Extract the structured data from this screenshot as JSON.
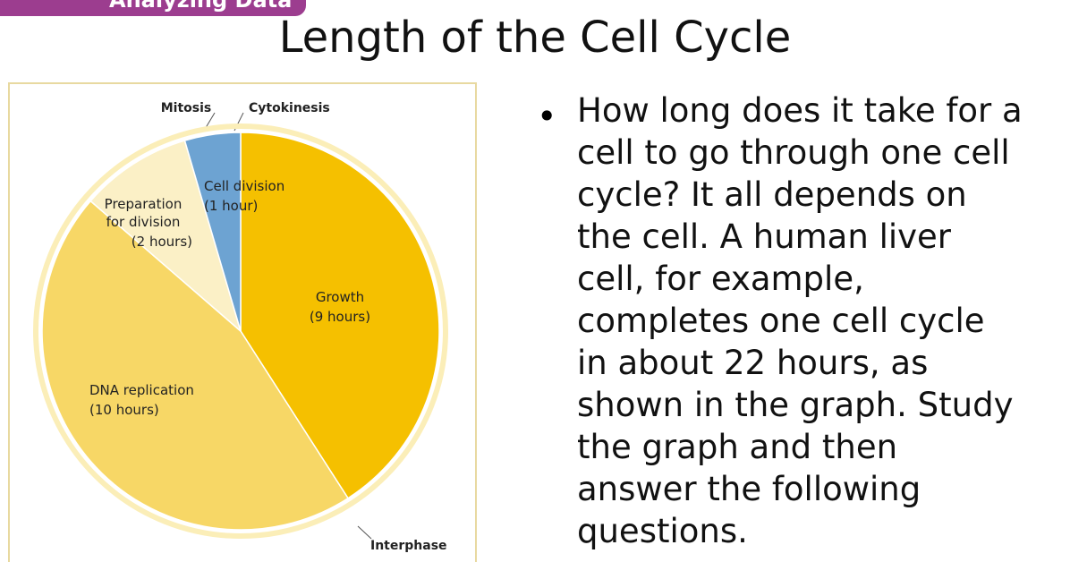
{
  "banner": "Analyzing Data",
  "title": "Length of the Cell Cycle",
  "bullet": "How long does it take for a cell to go through one cell cycle? It all depends on the cell. A human liver cell, for example, completes one cell cycle in about 22 hours, as shown in the graph. Study the graph and then answer the following questions.",
  "chart_data": {
    "type": "pie",
    "categories": [
      "Growth",
      "DNA replication",
      "Preparation for division",
      "Cell division"
    ],
    "values": [
      9,
      10,
      2,
      1
    ],
    "value_labels": [
      "(9 hours)",
      "(10 hours)",
      "(2 hours)",
      "(1 hour)"
    ],
    "colors": [
      "#f5c000",
      "#f7d766",
      "#fbf0c6",
      "#6da3d2"
    ],
    "annotations": [
      "Mitosis",
      "Cytokinesis",
      "Interphase"
    ]
  }
}
